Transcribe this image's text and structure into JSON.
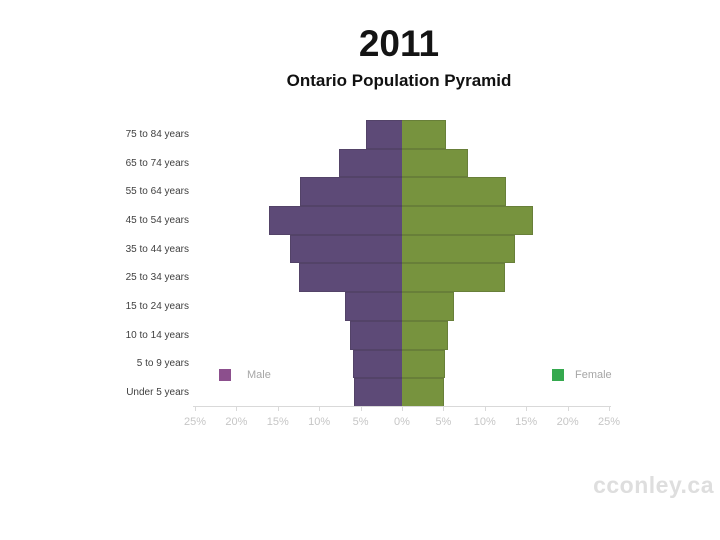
{
  "header": {
    "title": "2011",
    "subtitle": "Ontario Population Pyramid"
  },
  "legend": {
    "male": {
      "label": "Male",
      "swatch_color": "#8c4f8d",
      "text_color": "#a6a6a6"
    },
    "female": {
      "label": "Female",
      "swatch_color": "#35a94e",
      "text_color": "#a6a6a6"
    }
  },
  "watermark": {
    "text": "cconley.ca",
    "color": "#dedede"
  },
  "chart_data": {
    "type": "bar",
    "subtype": "population-pyramid",
    "orientation": "horizontal",
    "title": "2011",
    "subtitle": "Ontario Population Pyramid",
    "categories_top_to_bottom": [
      "75 to 84 years",
      "65 to 74 years",
      "55 to 64 years",
      "45 to 54 years",
      "35 to 44 years",
      "25 to 34 years",
      "15 to 24 years",
      "10 to 14 years",
      "5 to 9 years",
      "Under 5 years"
    ],
    "series": [
      {
        "name": "Male",
        "side": "left",
        "bar_color": "#5d4a77",
        "values_pct": [
          4.3,
          7.6,
          12.3,
          16.0,
          13.5,
          12.4,
          6.8,
          6.2,
          5.9,
          5.8
        ]
      },
      {
        "name": "Female",
        "side": "right",
        "bar_color": "#77933e",
        "values_pct": [
          5.4,
          8.1,
          12.7,
          15.9,
          13.7,
          12.5,
          6.4,
          5.6,
          5.3,
          5.2
        ]
      }
    ],
    "x_axis": {
      "tick_labels": [
        "25%",
        "20%",
        "15%",
        "10%",
        "5%",
        "0%",
        "5%",
        "10%",
        "15%",
        "20%",
        "25%"
      ],
      "max_pct_each_side": 25,
      "label_color": "#c6c6c6",
      "line_color": "#d9d9d9"
    },
    "xlim": [
      -25,
      25
    ],
    "grid": false,
    "legend_position": "inside-bottom-corners"
  }
}
